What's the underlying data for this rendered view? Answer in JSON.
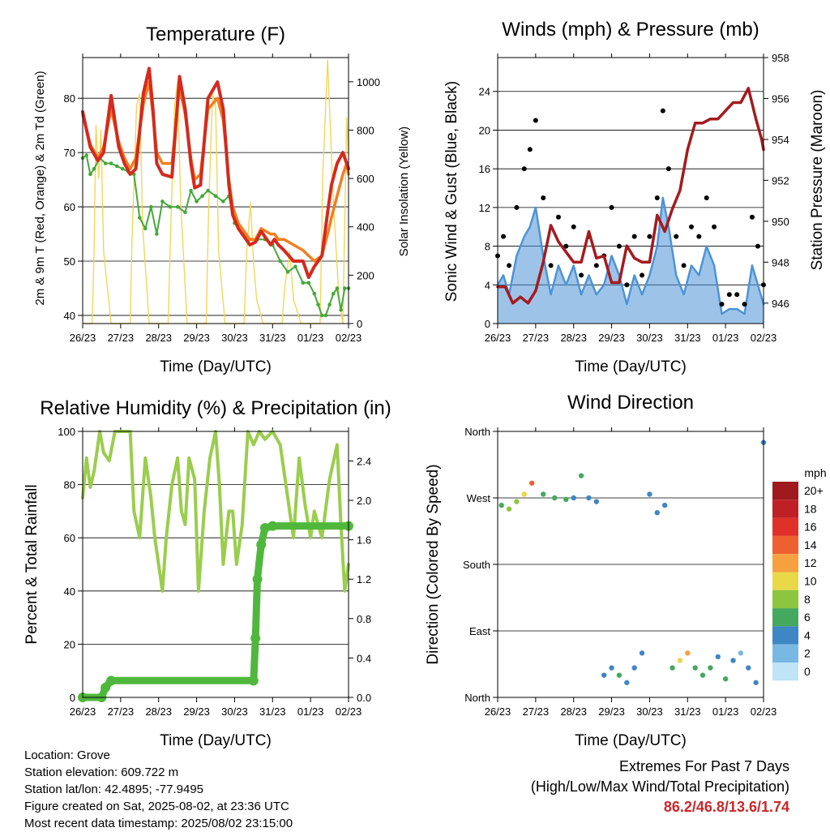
{
  "panels": {
    "temperature": {
      "title": "Temperature (F)",
      "xlabel": "Time (Day/UTC)",
      "ylabel_left": "2m & 9m T (Red, Orange) & 2m Td (Green)",
      "ylabel_right": "Solar Insolation (Yellow)"
    },
    "winds": {
      "title": "Winds (mph) & Pressure (mb)",
      "xlabel": "Time (Day/UTC)",
      "ylabel_left": "Sonic Wind & Gust (Blue, Black)",
      "ylabel_right": "Station Pressure (Maroon)"
    },
    "humidity": {
      "title": "Relative Humidity (%) & Precipitation (in)",
      "xlabel": "Time (Day/UTC)",
      "ylabel_left": "Percent & Total Rainfall"
    },
    "direction": {
      "title": "Wind Direction",
      "xlabel": "Time (Day/UTC)",
      "ylabel_left": "Direction (Colored By Speed)",
      "colorbar_title": "mph"
    }
  },
  "footer": {
    "location": "Location: Grove",
    "elevation": "Station elevation: 609.722 m",
    "latlon": "Station lat/lon: 42.4895; -77.9495",
    "created": "Figure created on Sat, 2025-08-02, at 23:36 UTC",
    "recent": "Most recent data timestamp: 2025/08/02 23:15:00"
  },
  "extremes": {
    "line1": "Extremes For Past 7 Days",
    "line2": "(High/Low/Max Wind/Total Precipitation)",
    "values": "86.2/46.8/13.6/1.74"
  },
  "chart_data": [
    {
      "type": "line",
      "title": "Temperature (F)",
      "xlabel": "Time (Day/UTC)",
      "ylabel": "2m & 9m T (Red, Orange) & 2m Td (Green)",
      "y2label": "Solar Insolation (Yellow)",
      "x_ticks": [
        "26/23",
        "27/23",
        "28/23",
        "29/23",
        "30/23",
        "31/23",
        "01/23",
        "02/23"
      ],
      "xlim": [
        0,
        7
      ],
      "ylim": [
        38.5,
        87.5
      ],
      "y_ticks": [
        40,
        50,
        60,
        70,
        80
      ],
      "y2lim": [
        0,
        1100
      ],
      "y2_ticks": [
        0,
        200,
        400,
        600,
        800,
        1000
      ],
      "grid": "horizontal",
      "series": [
        {
          "color": "#d42a1f",
          "x": [
            0,
            0.2,
            0.4,
            0.55,
            0.75,
            0.95,
            1.1,
            1.25,
            1.4,
            1.6,
            1.75,
            1.85,
            1.95,
            2.1,
            2.35,
            2.55,
            2.7,
            2.85,
            2.95,
            3.1,
            3.3,
            3.55,
            3.7,
            3.85,
            3.95,
            4.1,
            4.4,
            4.55,
            4.7,
            4.95,
            5.05,
            5.15,
            5.3,
            5.55,
            5.8,
            5.95,
            6.1,
            6.3,
            6.45,
            6.55,
            6.7,
            6.85,
            6.95,
            7
          ],
          "y": [
            77.5,
            71,
            68.5,
            70,
            80.5,
            71,
            68,
            66,
            67,
            81,
            85.5,
            78,
            68,
            66,
            65.5,
            84,
            78,
            68,
            63.5,
            64,
            80,
            83,
            78,
            64,
            58.5,
            56,
            53,
            53.5,
            55.5,
            53,
            54,
            53,
            52,
            50,
            50,
            47,
            49,
            51,
            59,
            64,
            68,
            70,
            68,
            67
          ]
        },
        {
          "color": "#f08020",
          "x": [
            0,
            0.2,
            0.4,
            0.55,
            0.75,
            0.95,
            1.1,
            1.25,
            1.4,
            1.6,
            1.75,
            1.85,
            1.95,
            2.1,
            2.35,
            2.55,
            2.7,
            2.85,
            2.95,
            3.1,
            3.3,
            3.55,
            3.7,
            3.85,
            3.95,
            4.1,
            4.4,
            4.55,
            4.7,
            4.95,
            5.05,
            5.15,
            5.3,
            5.55,
            5.8,
            5.95,
            6.1,
            6.3,
            6.45,
            6.55,
            6.7,
            6.85,
            6.95,
            7
          ],
          "y": [
            77,
            71.5,
            69,
            71,
            78,
            72,
            69,
            67,
            69,
            79,
            83,
            77,
            70,
            68,
            68,
            82,
            77,
            69,
            65,
            66,
            78,
            80,
            76,
            65,
            60,
            57,
            54,
            54,
            56,
            55,
            55,
            54,
            54,
            53,
            52,
            51,
            50,
            51,
            55,
            58,
            62,
            66,
            68,
            66
          ]
        },
        {
          "color": "#44a838",
          "x": [
            0,
            0.1,
            0.2,
            0.3,
            0.45,
            0.6,
            0.75,
            0.9,
            1.05,
            1.2,
            1.35,
            1.5,
            1.65,
            1.8,
            1.95,
            2.1,
            2.3,
            2.5,
            2.7,
            2.85,
            3.0,
            3.15,
            3.3,
            3.5,
            3.7,
            3.85,
            4.0,
            4.2,
            4.4,
            4.6,
            4.8,
            5.0,
            5.2,
            5.4,
            5.6,
            5.8,
            5.95,
            6.1,
            6.2,
            6.3,
            6.4,
            6.5,
            6.6,
            6.7,
            6.8,
            6.9,
            7
          ],
          "y": [
            69,
            69.5,
            66,
            67,
            69,
            68,
            68,
            67.5,
            67,
            66.5,
            66,
            58,
            56,
            60,
            55,
            61,
            60,
            60,
            59,
            63,
            61,
            62,
            63,
            62,
            61,
            62,
            57,
            55,
            54,
            54,
            54,
            53,
            50,
            48,
            49,
            46,
            46,
            44,
            42,
            40,
            40,
            42,
            44,
            45,
            41,
            45,
            45
          ]
        },
        {
          "color": "#f3d65a",
          "axis": "y2",
          "x": [
            0,
            0.25,
            0.3,
            0.35,
            0.42,
            0.48,
            0.55,
            0.75,
            1.25,
            1.3,
            1.42,
            1.5,
            1.58,
            1.75,
            2.25,
            2.32,
            2.42,
            2.5,
            2.58,
            2.75,
            3.25,
            3.32,
            3.42,
            3.5,
            3.58,
            3.75,
            4.25,
            4.32,
            4.42,
            4.5,
            4.58,
            4.75,
            5.25,
            5.32,
            5.45,
            5.55,
            5.75,
            6.25,
            6.32,
            6.45,
            6.6,
            6.75,
            6.85,
            6.95,
            7
          ],
          "y": [
            0,
            0,
            300,
            820,
            600,
            800,
            300,
            0,
            0,
            350,
            900,
            950,
            400,
            0,
            0,
            400,
            900,
            1000,
            500,
            0,
            0,
            500,
            950,
            900,
            300,
            0,
            0,
            300,
            500,
            250,
            100,
            0,
            0,
            150,
            300,
            100,
            0,
            0,
            600,
            1090,
            500,
            100,
            0,
            850,
            700
          ]
        }
      ]
    },
    {
      "type": "scatter",
      "title": "Winds (mph) & Pressure (mb)",
      "xlabel": "Time (Day/UTC)",
      "ylabel": "Sonic Wind & Gust (Blue, Black)",
      "y2label": "Station Pressure (Maroon)",
      "x_ticks": [
        "26/23",
        "27/23",
        "28/23",
        "29/23",
        "30/23",
        "31/23",
        "01/23",
        "02/23"
      ],
      "xlim": [
        0,
        7
      ],
      "ylim": [
        0,
        27.5
      ],
      "y_ticks": [
        0,
        4,
        8,
        12,
        16,
        20,
        24
      ],
      "y2lim": [
        945,
        958
      ],
      "y2_ticks": [
        946,
        948,
        950,
        952,
        954,
        956,
        958
      ],
      "grid": "horizontal",
      "series": [
        {
          "name": "Gust",
          "color": "#000000",
          "x": [
            0,
            0.15,
            0.3,
            0.5,
            0.7,
            0.85,
            1.0,
            1.2,
            1.4,
            1.6,
            1.8,
            2.0,
            2.2,
            2.4,
            2.6,
            2.8,
            3.0,
            3.2,
            3.4,
            3.6,
            3.8,
            4.0,
            4.2,
            4.35,
            4.5,
            4.7,
            4.9,
            5.1,
            5.3,
            5.5,
            5.7,
            5.9,
            6.1,
            6.3,
            6.5,
            6.7,
            6.85,
            7
          ],
          "y": [
            7,
            9,
            6,
            12,
            16,
            18,
            21,
            13,
            6,
            11,
            8,
            10,
            5,
            9,
            6,
            7,
            12,
            8,
            4,
            9,
            5,
            9,
            13,
            22,
            16,
            9,
            6,
            10,
            9,
            13,
            10,
            2,
            3,
            3,
            2,
            11,
            8,
            4
          ]
        },
        {
          "name": "Wind",
          "color": "#4d93d6",
          "x": [
            0,
            0.15,
            0.3,
            0.5,
            0.7,
            0.85,
            1.0,
            1.2,
            1.4,
            1.6,
            1.8,
            2.0,
            2.2,
            2.4,
            2.6,
            2.8,
            3.0,
            3.2,
            3.4,
            3.6,
            3.8,
            4.0,
            4.2,
            4.35,
            4.5,
            4.7,
            4.9,
            5.1,
            5.3,
            5.5,
            5.7,
            5.9,
            6.1,
            6.3,
            6.5,
            6.7,
            6.85,
            7
          ],
          "y": [
            4,
            5,
            3,
            7,
            9,
            10,
            12,
            7,
            3,
            6,
            4,
            6,
            3,
            5,
            3,
            4,
            7,
            5,
            2,
            5,
            3,
            5,
            8,
            13,
            10,
            5,
            3,
            6,
            5,
            8,
            6,
            1,
            1.5,
            1.5,
            1,
            6,
            4,
            2
          ]
        },
        {
          "name": "Pressure",
          "color": "#a31b1f",
          "axis": "y2",
          "x": [
            0,
            0.2,
            0.4,
            0.6,
            0.8,
            1.0,
            1.2,
            1.4,
            1.6,
            1.8,
            2.0,
            2.2,
            2.4,
            2.6,
            2.8,
            3.0,
            3.2,
            3.4,
            3.6,
            3.8,
            4.0,
            4.2,
            4.4,
            4.6,
            4.8,
            5.0,
            5.2,
            5.4,
            5.6,
            5.8,
            6.0,
            6.2,
            6.4,
            6.6,
            6.8,
            6.95,
            7
          ],
          "y": [
            946.8,
            946.8,
            946.0,
            946.3,
            946.0,
            946.6,
            948.0,
            949.8,
            949.0,
            948.5,
            948.0,
            948.0,
            949.5,
            948.2,
            948.3,
            947.0,
            947.0,
            948.8,
            948.2,
            948.0,
            948.0,
            950.3,
            949.5,
            950.6,
            951.5,
            953.5,
            954.8,
            954.8,
            955.0,
            955.0,
            955.4,
            955.8,
            955.8,
            956.5,
            955.0,
            954.0,
            953.5
          ]
        }
      ]
    },
    {
      "type": "line",
      "title": "Relative Humidity (%) & Precipitation (in)",
      "xlabel": "Time (Day/UTC)",
      "ylabel": "Percent & Total Rainfall",
      "x_ticks": [
        "26/23",
        "27/23",
        "28/23",
        "29/23",
        "30/23",
        "31/23",
        "01/23",
        "02/23"
      ],
      "xlim": [
        0,
        7
      ],
      "ylim": [
        0,
        100
      ],
      "y_ticks": [
        0,
        20,
        40,
        60,
        80,
        100
      ],
      "y2lim": [
        0,
        2.7
      ],
      "y2_ticks": [
        "0.0",
        "0.4",
        "0.8",
        "1.2",
        "1.6",
        "2.0",
        "2.4"
      ],
      "grid": "horizontal",
      "series": [
        {
          "name": "RH",
          "color": "#9acd4d",
          "x": [
            0,
            0.1,
            0.2,
            0.3,
            0.45,
            0.55,
            0.7,
            0.85,
            0.95,
            1.05,
            1.25,
            1.35,
            1.5,
            1.65,
            1.8,
            1.9,
            2.0,
            2.1,
            2.2,
            2.35,
            2.5,
            2.6,
            2.7,
            2.8,
            2.95,
            3.05,
            3.2,
            3.35,
            3.5,
            3.6,
            3.7,
            3.85,
            3.95,
            4.05,
            4.2,
            4.35,
            4.5,
            4.65,
            4.8,
            5.0,
            5.2,
            5.4,
            5.55,
            5.7,
            5.85,
            6.0,
            6.1,
            6.3,
            6.5,
            6.7,
            6.8,
            6.9,
            7
          ],
          "y": [
            75,
            90,
            79,
            85,
            100,
            92,
            89,
            100,
            100,
            100,
            100,
            70,
            60,
            90,
            75,
            60,
            50,
            40,
            60,
            80,
            90,
            70,
            65,
            90,
            82,
            40,
            70,
            90,
            100,
            80,
            50,
            70,
            70,
            50,
            65,
            100,
            95,
            100,
            97,
            100,
            95,
            75,
            60,
            90,
            73,
            60,
            70,
            60,
            82,
            95,
            65,
            40,
            50
          ]
        },
        {
          "name": "Precipitation",
          "color": "#4fb83c",
          "axis": "y2",
          "x": [
            0,
            0.5,
            0.6,
            0.75,
            4.5,
            4.55,
            4.6,
            4.7,
            4.8,
            5.0,
            7
          ],
          "y": [
            0.0,
            0.0,
            0.1,
            0.17,
            0.17,
            0.6,
            1.2,
            1.55,
            1.72,
            1.74,
            1.74
          ]
        }
      ]
    },
    {
      "type": "scatter",
      "title": "Wind Direction",
      "xlabel": "Time (Day/UTC)",
      "ylabel": "Direction (Colored By Speed)",
      "x_ticks": [
        "26/23",
        "27/23",
        "28/23",
        "29/23",
        "30/23",
        "31/23",
        "01/23",
        "02/23"
      ],
      "xlim": [
        0,
        7
      ],
      "y_ticks": [
        "North",
        "East",
        "South",
        "West",
        "North"
      ],
      "ylim": [
        0,
        360
      ],
      "grid": "horizontal",
      "colorbar": {
        "title": "mph",
        "labels": [
          "20+",
          "18",
          "16",
          "14",
          "12",
          "10",
          "8",
          "6",
          "4",
          "2",
          "0"
        ],
        "colors": [
          "#9e1a1e",
          "#bf2026",
          "#e0302a",
          "#ee6030",
          "#f6a040",
          "#e8d848",
          "#8cc63f",
          "#45a85f",
          "#3f86c4",
          "#7ab8e4",
          "#bee4f6"
        ]
      },
      "series": [
        {
          "name": "Direction",
          "x": [
            0.1,
            0.3,
            0.5,
            0.7,
            0.9,
            1.2,
            1.5,
            1.8,
            2.0,
            2.2,
            2.4,
            2.6,
            2.8,
            3.0,
            3.2,
            3.4,
            3.6,
            3.8,
            4.0,
            4.2,
            4.4,
            4.6,
            4.8,
            5.0,
            5.2,
            5.4,
            5.6,
            5.8,
            6.0,
            6.2,
            6.4,
            6.6,
            6.8,
            7.0
          ],
          "y": [
            260,
            255,
            265,
            275,
            290,
            275,
            270,
            268,
            270,
            300,
            270,
            265,
            30,
            40,
            30,
            20,
            40,
            60,
            275,
            250,
            260,
            40,
            50,
            60,
            40,
            30,
            40,
            55,
            25,
            50,
            60,
            40,
            20,
            345
          ],
          "speed": [
            6,
            7,
            8,
            10,
            13,
            6,
            5,
            5,
            4,
            6,
            4,
            4,
            3,
            4,
            5,
            4,
            3,
            3,
            4,
            3,
            3,
            5,
            9,
            11,
            6,
            5,
            6,
            4,
            5,
            3,
            2,
            3,
            4,
            4
          ]
        }
      ]
    }
  ]
}
